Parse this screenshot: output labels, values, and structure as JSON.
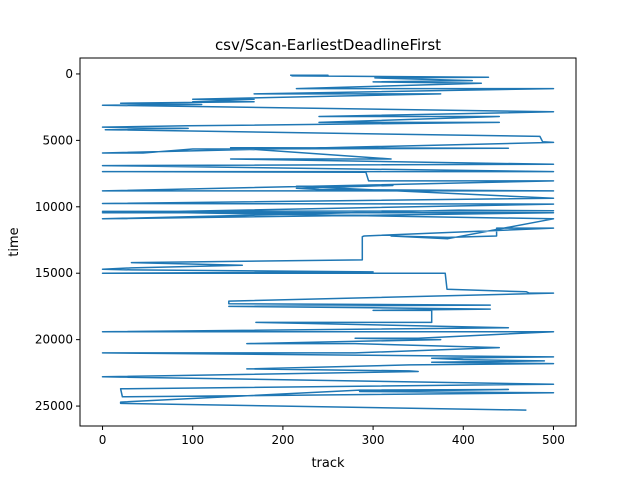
{
  "chart_data": {
    "type": "line",
    "title": "csv/Scan-EarliestDeadlineFirst",
    "xlabel": "track",
    "ylabel": "time",
    "xlim": [
      -25,
      525
    ],
    "ylim": [
      26500,
      -1200
    ],
    "y_inverted": true,
    "xticks": [
      0,
      100,
      200,
      300,
      400,
      500
    ],
    "yticks": [
      0,
      5000,
      10000,
      15000,
      20000,
      25000
    ],
    "grid": false,
    "legend": "none",
    "series": [
      {
        "color": "#1f77b4",
        "x": [
          208,
          250,
          210,
          428,
          302,
          410,
          300,
          420,
          215,
          500,
          168,
          375,
          100,
          168,
          100,
          168,
          20,
          110,
          0,
          500,
          240,
          440,
          240,
          440,
          95,
          0,
          95,
          3,
          485,
          488,
          500,
          0,
          45,
          100,
          450,
          142,
          320,
          142,
          500,
          0,
          500,
          0,
          292,
          295,
          500,
          0,
          500,
          240,
          215,
          322,
          215,
          500,
          0,
          500,
          0,
          500,
          0,
          395,
          500,
          0,
          500,
          383,
          320,
          383,
          437,
          437,
          500,
          290,
          288,
          288,
          32,
          155,
          32,
          0,
          32,
          300,
          0,
          380,
          382,
          470,
          473,
          500,
          140,
          140,
          430,
          140,
          300,
          430,
          300,
          365,
          365,
          170,
          450,
          0,
          500,
          350,
          280,
          375,
          160,
          280,
          440,
          280,
          0,
          500,
          365,
          400,
          490,
          365,
          500,
          340,
          160,
          340,
          350,
          0,
          500,
          20,
          22,
          500,
          285,
          450,
          285,
          20,
          20,
          470
        ],
        "y": [
          100,
          100,
          150,
          250,
          300,
          500,
          600,
          700,
          1100,
          1100,
          1500,
          1500,
          1900,
          1900,
          2100,
          2100,
          2200,
          2300,
          2350,
          2850,
          3200,
          3200,
          3650,
          3650,
          3900,
          4000,
          4100,
          4200,
          4700,
          5100,
          5150,
          5950,
          5950,
          5650,
          5600,
          5550,
          6400,
          6400,
          6800,
          6900,
          7350,
          7350,
          7400,
          8050,
          8050,
          8800,
          8800,
          8700,
          8600,
          8400,
          8450,
          9350,
          9750,
          9800,
          10450,
          10450,
          10900,
          10250,
          10300,
          10350,
          10900,
          12400,
          12200,
          12300,
          12200,
          11600,
          11600,
          12200,
          12250,
          14000,
          14200,
          14400,
          14600,
          14700,
          14750,
          14900,
          15000,
          15000,
          16200,
          16400,
          16500,
          16500,
          17100,
          17300,
          17400,
          17500,
          17600,
          17700,
          17800,
          17800,
          18700,
          18700,
          19100,
          19400,
          19400,
          19900,
          19900,
          20000,
          20300,
          20300,
          20600,
          21000,
          21000,
          21300,
          21400,
          21500,
          21600,
          21700,
          21800,
          21900,
          22200,
          22350,
          22400,
          22800,
          23350,
          23700,
          24300,
          24000,
          23900,
          23750,
          23800,
          24700,
          24800,
          25300
        ]
      }
    ]
  }
}
